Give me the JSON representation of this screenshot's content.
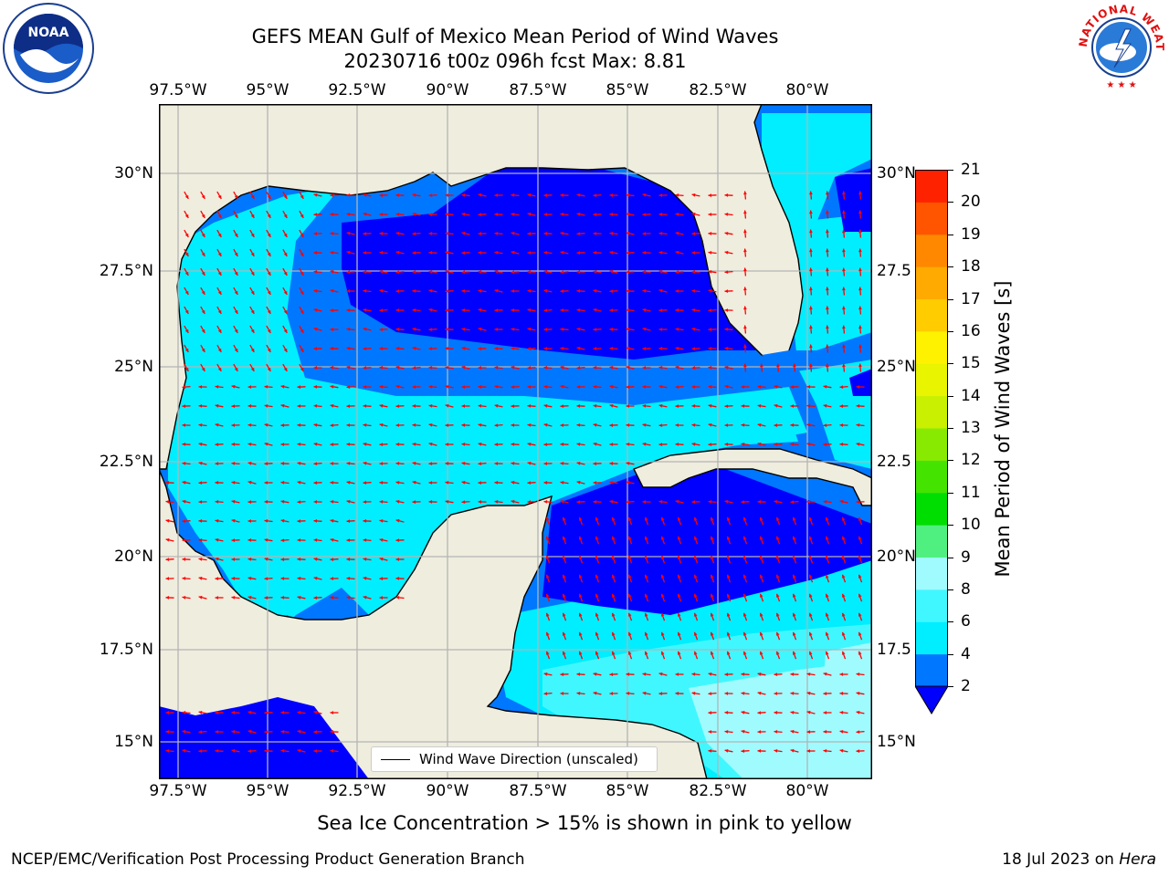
{
  "title": {
    "line1": "GEFS MEAN Gulf of Mexico Mean Period of Wind Waves",
    "line2": "20230716 t00z 096h fcst   Max: 8.81"
  },
  "logos": {
    "left": {
      "icon": "noaa-logo",
      "text": "NOAA"
    },
    "right": {
      "icon": "national-weather-service-logo",
      "text": "NATIONAL WEATHER SERVICE"
    }
  },
  "map": {
    "lon_ticks": [
      "97.5°W",
      "95°W",
      "92.5°W",
      "90°W",
      "87.5°W",
      "85°W",
      "82.5°W",
      "80°W"
    ],
    "lat_ticks_left": [
      "30°N",
      "27.5°N",
      "25°N",
      "22.5°N",
      "20°N",
      "17.5°N",
      "15°N"
    ],
    "lat_ticks_right": [
      "30°N",
      "27.5",
      "25°N",
      "22.5",
      "20°N",
      "17.5",
      "15°N"
    ],
    "legend_text": "Wind Wave Direction (unscaled)",
    "colors": {
      "land": "#efedde",
      "coast": "#000000",
      "grid": "#b4b4b4",
      "arrow": "#ff0000",
      "level_2_4": "#0077ff",
      "level_below_2": "#0000ff",
      "level_4_6": "#00eeff",
      "level_6_8": "#40f7ff",
      "level_8_9": "#a0fbff"
    }
  },
  "colorbar": {
    "label": "Mean Period of Wind Waves [s]",
    "ticks": [
      "2",
      "4",
      "6",
      "8",
      "9",
      "10",
      "11",
      "12",
      "13",
      "14",
      "15",
      "16",
      "17",
      "18",
      "19",
      "20",
      "21"
    ],
    "colors": [
      "#0077ff",
      "#00eeff",
      "#40f7ff",
      "#a0fbff",
      "#50f080",
      "#00dd00",
      "#44e400",
      "#88ea00",
      "#c8f000",
      "#e8f400",
      "#fff200",
      "#ffcc00",
      "#ffaa00",
      "#ff8800",
      "#ff5500",
      "#ff2200"
    ],
    "extend_color": "#0000ff"
  },
  "note": "Sea Ice Concentration > 15% is shown in pink to yellow",
  "footer": {
    "left": "NCEP/EMC/Verification Post Processing Product Generation Branch",
    "right_date": "18 Jul 2023 on ",
    "right_host": "Hera"
  }
}
